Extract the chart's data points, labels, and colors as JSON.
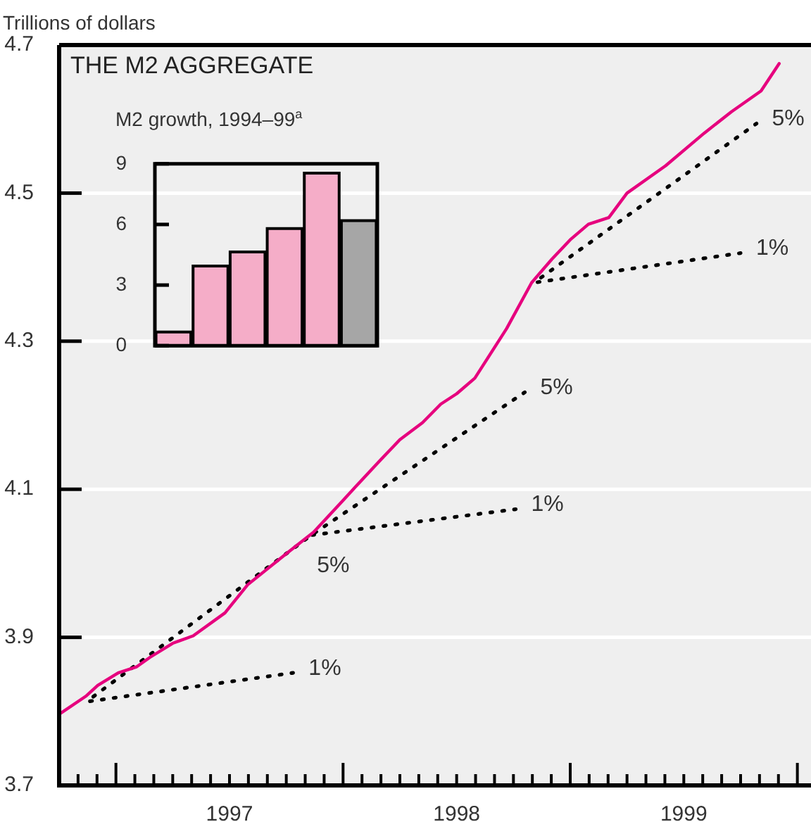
{
  "chart_data": [
    {
      "type": "line",
      "title": "THE M2 AGGREGATE",
      "ylabel": "Trillions of dollars",
      "marker": "none",
      "grid": "y",
      "xlim": [
        1996.75,
        2000.06
      ],
      "ylim": [
        3.7,
        4.7
      ],
      "yticks": [
        3.7,
        3.9,
        4.1,
        4.3,
        4.5,
        4.7
      ],
      "xticks": [
        {
          "value": 1996.8333,
          "label": null
        },
        {
          "value": 1996.9167,
          "label": null
        },
        {
          "value": 1997,
          "label": null
        },
        {
          "value": 1997.0833,
          "label": null
        },
        {
          "value": 1997.1667,
          "label": null
        },
        {
          "value": 1997.25,
          "label": null
        },
        {
          "value": 1997.3333,
          "label": null
        },
        {
          "value": 1997.4167,
          "label": null
        },
        {
          "value": 1997.5,
          "label": "1997"
        },
        {
          "value": 1997.5833,
          "label": null
        },
        {
          "value": 1997.6667,
          "label": null
        },
        {
          "value": 1997.75,
          "label": null
        },
        {
          "value": 1997.8333,
          "label": null
        },
        {
          "value": 1997.9167,
          "label": null
        },
        {
          "value": 1998,
          "label": null
        },
        {
          "value": 1998.0833,
          "label": null
        },
        {
          "value": 1998.1667,
          "label": null
        },
        {
          "value": 1998.25,
          "label": null
        },
        {
          "value": 1998.3333,
          "label": null
        },
        {
          "value": 1998.4167,
          "label": null
        },
        {
          "value": 1998.5,
          "label": "1998"
        },
        {
          "value": 1998.5833,
          "label": null
        },
        {
          "value": 1998.6667,
          "label": null
        },
        {
          "value": 1998.75,
          "label": null
        },
        {
          "value": 1998.8333,
          "label": null
        },
        {
          "value": 1998.9167,
          "label": null
        },
        {
          "value": 1999,
          "label": null
        },
        {
          "value": 1999.0833,
          "label": null
        },
        {
          "value": 1999.1667,
          "label": null
        },
        {
          "value": 1999.25,
          "label": null
        },
        {
          "value": 1999.3333,
          "label": null
        },
        {
          "value": 1999.4167,
          "label": null
        },
        {
          "value": 1999.5,
          "label": "1999"
        },
        {
          "value": 1999.5833,
          "label": null
        },
        {
          "value": 1999.6667,
          "label": null
        },
        {
          "value": 1999.75,
          "label": null
        },
        {
          "value": 1999.8333,
          "label": null
        },
        {
          "value": 1999.9167,
          "label": null
        },
        {
          "value": 2000,
          "label": null
        }
      ],
      "series": [
        {
          "color": "#e6007e",
          "line_style": "solid",
          "x": [
            1996.75,
            1996.87,
            1996.92,
            1997.01,
            1997.09,
            1997.15,
            1997.25,
            1997.34,
            1997.48,
            1997.58,
            1997.75,
            1997.87,
            1998.0,
            1998.09,
            1998.16,
            1998.25,
            1998.35,
            1998.43,
            1998.5,
            1998.58,
            1998.72,
            1998.83,
            1998.92,
            1999.0,
            1999.08,
            1999.17,
            1999.25,
            1999.42,
            1999.59,
            1999.71,
            1999.84,
            1999.92
          ],
          "values": [
            3.796,
            3.821,
            3.835,
            3.852,
            3.86,
            3.873,
            3.892,
            3.902,
            3.933,
            3.971,
            4.013,
            4.042,
            4.085,
            4.115,
            4.138,
            4.167,
            4.19,
            4.215,
            4.229,
            4.25,
            4.317,
            4.379,
            4.411,
            4.437,
            4.458,
            4.467,
            4.5,
            4.537,
            4.581,
            4.61,
            4.638,
            4.675
          ]
        },
        {
          "color": "#000000",
          "line_style": "dotted",
          "x": [
            1996.87,
            1997.78
          ],
          "values": [
            3.813,
            3.852
          ]
        },
        {
          "color": "#000000",
          "line_style": "dotted",
          "x": [
            1996.87,
            1997.86,
            1998.8
          ],
          "values": [
            3.813,
            4.038,
            4.231
          ]
        },
        {
          "color": "#000000",
          "line_style": "dotted",
          "x": [
            1997.86,
            1998.76
          ],
          "values": [
            4.038,
            4.073
          ]
        },
        {
          "color": "#000000",
          "line_style": "dotted",
          "x": [
            1998.84,
            1999.75
          ],
          "values": [
            4.379,
            4.419
          ]
        },
        {
          "color": "#000000",
          "line_style": "dotted",
          "x": [
            1998.84,
            1999.82
          ],
          "values": [
            4.379,
            4.594
          ]
        }
      ],
      "annotations": [
        {
          "text": "1%",
          "x": 1997.78,
          "y": 3.852
        },
        {
          "text": "5%",
          "x": 1997.86,
          "y": 4.038
        },
        {
          "text": "1%",
          "x": 1998.76,
          "y": 4.073
        },
        {
          "text": "5%",
          "x": 1998.8,
          "y": 4.231
        },
        {
          "text": "1%",
          "x": 1999.75,
          "y": 4.419
        },
        {
          "text": "5%",
          "x": 1999.82,
          "y": 4.594
        }
      ]
    },
    {
      "type": "bar",
      "title": "M2 growth, 1994–99$^{a}$",
      "categories": [
        null,
        null,
        null,
        null,
        null,
        null
      ],
      "values": [
        0.68,
        3.94,
        4.64,
        5.8,
        8.54,
        6.19
      ],
      "colors": [
        "#f5adc8",
        "#f5adc8",
        "#f5adc8",
        "#f5adc8",
        "#f5adc8",
        "#a6a6a6"
      ],
      "ylim": [
        0,
        9
      ],
      "yticks": [
        0,
        3,
        6,
        9
      ],
      "tick_labels": "y"
    }
  ]
}
